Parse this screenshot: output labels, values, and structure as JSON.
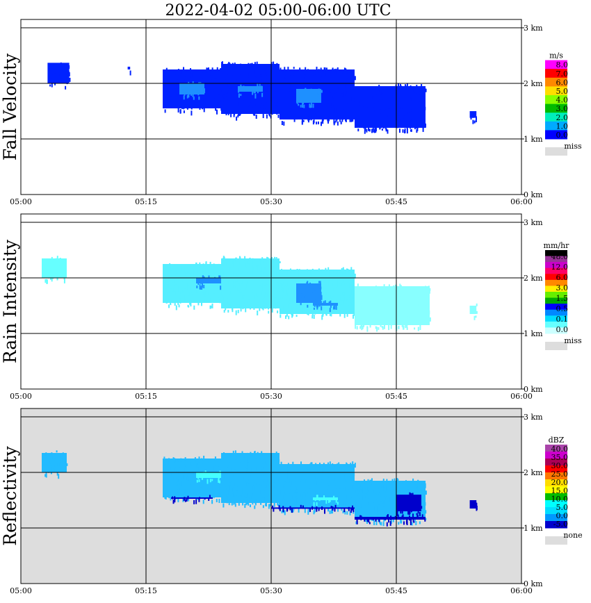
{
  "title": "2022-04-02   05:00-06:00 UTC",
  "time_ticks": [
    "05:00",
    "05:15",
    "05:30",
    "05:45",
    "06:00"
  ],
  "height_ticks": [
    "0 km",
    "1 km",
    "2 km",
    "3 km"
  ],
  "chart_data": [
    {
      "type": "heatmap",
      "name": "fall-velocity",
      "ylabel": "Fall Velocity",
      "xlim": [
        "05:00",
        "06:00"
      ],
      "ylim_km": [
        0,
        3.5
      ],
      "grid": true,
      "background": "#ffffff",
      "colorbar": {
        "unit": "m/s",
        "labels": [
          "8.0",
          "7.0",
          "6.0",
          "5.0",
          "4.0",
          "3.0",
          "2.0",
          "1.0",
          "0.0"
        ],
        "colors": [
          "#ff00ff",
          "#ff0000",
          "#ff8800",
          "#ffdd00",
          "#88ff00",
          "#00bb00",
          "#00eebb",
          "#00aaff",
          "#0000ff"
        ],
        "missing_label": "miss"
      },
      "echoes": [
        {
          "t_start": 3.2,
          "t_end": 5.8,
          "base_km": 1.95,
          "top_km": 2.42,
          "color": "#0022ff"
        },
        {
          "t_start": 12.8,
          "t_end": 13.1,
          "base_km": 2.2,
          "top_km": 2.35,
          "color": "#0022ff"
        },
        {
          "t_start": 17.0,
          "t_end": 24.0,
          "base_km": 1.5,
          "top_km": 2.3,
          "color": "#0022ff"
        },
        {
          "t_start": 24.0,
          "t_end": 31.0,
          "base_km": 1.4,
          "top_km": 2.4,
          "color": "#0022ff"
        },
        {
          "t_start": 31.0,
          "t_end": 40.0,
          "base_km": 1.3,
          "top_km": 2.3,
          "color": "#0022ff"
        },
        {
          "t_start": 40.0,
          "t_end": 48.5,
          "base_km": 1.15,
          "top_km": 2.0,
          "color": "#0022ff"
        },
        {
          "t_start": 53.8,
          "t_end": 54.6,
          "base_km": 1.33,
          "top_km": 1.55,
          "color": "#0022ff"
        },
        {
          "t_start": 19.0,
          "t_end": 22.0,
          "base_km": 1.75,
          "top_km": 2.05,
          "color": "#1e90ff"
        },
        {
          "t_start": 26.0,
          "t_end": 29.0,
          "base_km": 1.8,
          "top_km": 2.0,
          "color": "#1e90ff"
        },
        {
          "t_start": 33.0,
          "t_end": 36.0,
          "base_km": 1.6,
          "top_km": 1.95,
          "color": "#1e90ff"
        }
      ]
    },
    {
      "type": "heatmap",
      "name": "rain-intensity",
      "ylabel": "Rain Intensity",
      "xlim": [
        "05:00",
        "06:00"
      ],
      "ylim_km": [
        0,
        3.5
      ],
      "grid": true,
      "background": "#ffffff",
      "colorbar": {
        "unit": "mm/hr",
        "labels": [
          "48.0",
          "12.0",
          "6.0",
          "3.0",
          "1.5",
          "0.5",
          "0.1",
          "0.0"
        ],
        "colors": [
          "#000000",
          "#993399",
          "#cc00cc",
          "#ff0066",
          "#ff0000",
          "#ff8800",
          "#ffee00",
          "#66ee00",
          "#00aa00",
          "#0000ff",
          "#0088ff",
          "#00ddff",
          "#66ffff",
          "#ccffff"
        ],
        "missing_label": "miss"
      },
      "echoes": [
        {
          "t_start": 2.5,
          "t_end": 5.5,
          "base_km": 1.95,
          "top_km": 2.4,
          "color": "#66ffff"
        },
        {
          "t_start": 17.0,
          "t_end": 24.0,
          "base_km": 1.5,
          "top_km": 2.3,
          "color": "#55eeff"
        },
        {
          "t_start": 24.0,
          "t_end": 31.0,
          "base_km": 1.4,
          "top_km": 2.4,
          "color": "#55eeff"
        },
        {
          "t_start": 31.0,
          "t_end": 40.0,
          "base_km": 1.3,
          "top_km": 2.2,
          "color": "#55eeff"
        },
        {
          "t_start": 40.0,
          "t_end": 49.0,
          "base_km": 1.1,
          "top_km": 1.9,
          "color": "#88ffff"
        },
        {
          "t_start": 53.8,
          "t_end": 54.6,
          "base_km": 1.3,
          "top_km": 1.55,
          "color": "#88ffff"
        },
        {
          "t_start": 21.0,
          "t_end": 24.0,
          "base_km": 1.85,
          "top_km": 2.05,
          "color": "#1e90ff"
        },
        {
          "t_start": 33.0,
          "t_end": 36.0,
          "base_km": 1.5,
          "top_km": 1.95,
          "color": "#1e90ff"
        },
        {
          "t_start": 35.0,
          "t_end": 38.0,
          "base_km": 1.45,
          "top_km": 1.6,
          "color": "#1e90ff"
        }
      ]
    },
    {
      "type": "heatmap",
      "name": "reflectivity",
      "ylabel": "Reflectivity",
      "xlim": [
        "05:00",
        "06:00"
      ],
      "ylim_km": [
        0,
        3.5
      ],
      "grid": true,
      "background": "#dddddd",
      "colorbar": {
        "unit": "dBZ",
        "labels": [
          "40.0",
          "35.0",
          "30.0",
          "25.0",
          "20.0",
          "15.0",
          "10.0",
          "5.0",
          "0.0",
          "-5.0"
        ],
        "colors": [
          "#aa44aa",
          "#cc00cc",
          "#aa0055",
          "#ff0000",
          "#ff7700",
          "#ffdd00",
          "#ffff00",
          "#00bb00",
          "#00ffff",
          "#00ddff",
          "#0099ff",
          "#0000cc"
        ],
        "missing_label": "none"
      },
      "echoes": [
        {
          "t_start": 2.5,
          "t_end": 5.5,
          "base_km": 1.95,
          "top_km": 2.4,
          "color": "#22bbff"
        },
        {
          "t_start": 17.0,
          "t_end": 24.0,
          "base_km": 1.5,
          "top_km": 2.3,
          "color": "#22bbff"
        },
        {
          "t_start": 24.0,
          "t_end": 31.0,
          "base_km": 1.4,
          "top_km": 2.4,
          "color": "#22bbff"
        },
        {
          "t_start": 31.0,
          "t_end": 40.0,
          "base_km": 1.3,
          "top_km": 2.2,
          "color": "#22bbff"
        },
        {
          "t_start": 40.0,
          "t_end": 48.5,
          "base_km": 1.1,
          "top_km": 1.9,
          "color": "#22bbff"
        },
        {
          "t_start": 18.0,
          "t_end": 23.0,
          "base_km": 1.5,
          "top_km": 1.6,
          "color": "#0000cc"
        },
        {
          "t_start": 30.0,
          "t_end": 40.0,
          "base_km": 1.33,
          "top_km": 1.42,
          "color": "#0000cc"
        },
        {
          "t_start": 40.0,
          "t_end": 48.5,
          "base_km": 1.1,
          "top_km": 1.25,
          "color": "#0000cc"
        },
        {
          "t_start": 45.0,
          "t_end": 48.0,
          "base_km": 1.25,
          "top_km": 1.65,
          "color": "#0000cc"
        },
        {
          "t_start": 53.8,
          "t_end": 54.6,
          "base_km": 1.3,
          "top_km": 1.55,
          "color": "#0000cc"
        },
        {
          "t_start": 21.0,
          "t_end": 24.0,
          "base_km": 1.85,
          "top_km": 2.05,
          "color": "#44ffff"
        },
        {
          "t_start": 35.0,
          "t_end": 38.0,
          "base_km": 1.45,
          "top_km": 1.6,
          "color": "#44ffff"
        }
      ]
    }
  ]
}
